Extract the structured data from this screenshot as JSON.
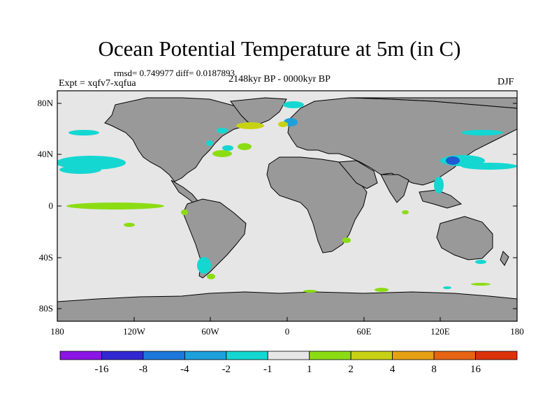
{
  "title": "Ocean Potential Temperature at 5m (in C)",
  "stats": "rmsd= 0.749977 diff= 0.0187893",
  "experiment": "Expt = xqfv7-xqfua",
  "period": "2148kyr BP - 0000kyr BP",
  "season": "DJF",
  "map": {
    "lat_ticks": [
      "80N",
      "40N",
      "0",
      "40S",
      "80S"
    ],
    "lon_ticks": [
      "180",
      "120W",
      "60W",
      "0",
      "60E",
      "120E",
      "180"
    ],
    "colors": {
      "ocean_neutral": "#e6e6e6",
      "land": "#999999",
      "cyan": "#14d7d2",
      "green": "#8cdc14",
      "yellowgreen": "#c8d214",
      "blue": "#1e5ad2"
    }
  },
  "colorbar": {
    "colors": [
      "#8c14e6",
      "#3228d2",
      "#1e78dc",
      "#1ea0dc",
      "#14d7d2",
      "#e6e6e6",
      "#8cdc14",
      "#c8d214",
      "#e6a014",
      "#e66414",
      "#dc320a"
    ],
    "labels": [
      "-16",
      "-8",
      "-4",
      "-2",
      "-1",
      "1",
      "2",
      "4",
      "8",
      "16"
    ]
  }
}
